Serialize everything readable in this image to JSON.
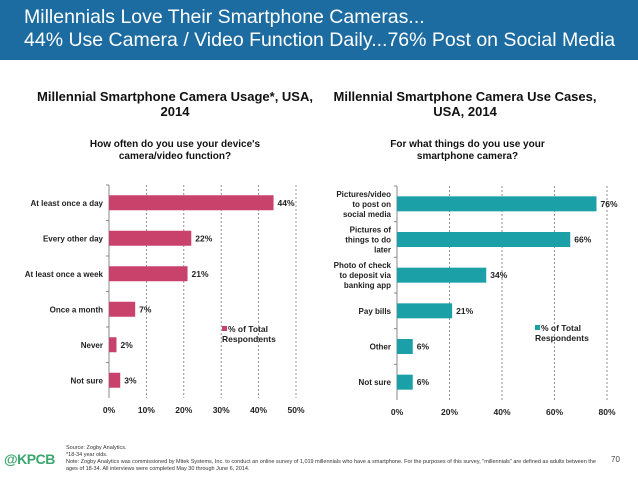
{
  "header": {
    "line1": "Millennials Love Their Smartphone Cameras...",
    "line2": "44% Use Camera / Video Function Daily...76% Post on Social Media",
    "bg": "#1c6ba1"
  },
  "chart_data": [
    {
      "type": "bar",
      "orientation": "horizontal",
      "title": "Millennial Smartphone Camera Usage*, USA, 2014",
      "subtitle": "How often do you use your device's camera/video function?",
      "categories": [
        "At least once a day",
        "Every other day",
        "At least once a week",
        "Once a month",
        "Never",
        "Not sure"
      ],
      "series": [
        {
          "name": "% of Total Respondents",
          "values": [
            44,
            22,
            21,
            7,
            2,
            3
          ],
          "color": "#c8426c"
        }
      ],
      "data_labels": [
        "44%",
        "22%",
        "21%",
        "7%",
        "2%",
        "3%"
      ],
      "xlim": [
        0,
        50
      ],
      "xticks": [
        "0%",
        "10%",
        "20%",
        "30%",
        "40%",
        "50%"
      ],
      "grid": "vertical dashed",
      "legend": "center-right"
    },
    {
      "type": "bar",
      "orientation": "horizontal",
      "title": "Millennial Smartphone Camera Use Cases, USA, 2014",
      "subtitle": "For what things do you use your smartphone camera?",
      "categories": [
        "Pictures/video to post on social media",
        "Pictures of things to do later",
        "Photo of check to deposit via banking app",
        "Pay bills",
        "Other",
        "Not sure"
      ],
      "category_lines": [
        [
          "Pictures/video",
          "to post on",
          "social media"
        ],
        [
          "Pictures of",
          "things to do",
          "later"
        ],
        [
          "Photo of check",
          "to deposit via",
          "banking app"
        ],
        [
          "Pay bills"
        ],
        [
          "Other"
        ],
        [
          "Not sure"
        ]
      ],
      "series": [
        {
          "name": "% of Total Respondents",
          "values": [
            76,
            66,
            34,
            21,
            6,
            6
          ],
          "color": "#1aa0a6"
        }
      ],
      "data_labels": [
        "76%",
        "66%",
        "34%",
        "21%",
        "6%",
        "6%"
      ],
      "xlim": [
        0,
        80
      ],
      "xticks": [
        "0%",
        "20%",
        "40%",
        "60%",
        "80%"
      ],
      "grid": "vertical dashed",
      "legend": "center-right"
    }
  ],
  "legend_lines": [
    "% of Total",
    "Respondents"
  ],
  "footer": {
    "logo": "@KPCB",
    "source": "Source: Zogby Analytics.",
    "note1": "*18-34 year olds.",
    "note2": "Note: Zogby Analytics was commissioned by Mitek Systems, Inc. to conduct an online survey of 1,019 millennials who have a smartphone. For the purposes of this survey, \"millennials\" are defined as adults between the ages of 18-34. All interviews were completed May 30 through June 6, 2014.",
    "page": "70"
  }
}
